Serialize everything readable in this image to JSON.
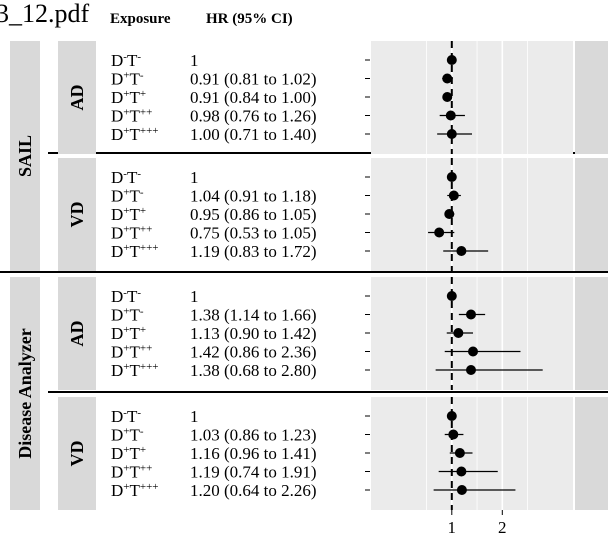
{
  "file_fragment": "3_12.pdf",
  "header": {
    "exposure": "Exposure",
    "hr": "HR (95% CI)"
  },
  "chart_data": {
    "type": "forest",
    "reference_line": 1,
    "x_ticks": [
      1,
      2
    ],
    "xlim": [
      -0.6,
      3.4
    ],
    "groups": [
      {
        "name": "SAIL",
        "panels": [
          {
            "name": "AD",
            "rows": [
              {
                "exposure": [
                  "D",
                  "-",
                  "T",
                  "-"
                ],
                "hr": 1,
                "lo": null,
                "hi": null,
                "label": "1"
              },
              {
                "exposure": [
                  "D",
                  "+",
                  "T",
                  "-"
                ],
                "hr": 0.91,
                "lo": 0.81,
                "hi": 1.02,
                "label": "0.91 (0.81 to 1.02)"
              },
              {
                "exposure": [
                  "D",
                  "+",
                  "T",
                  "+"
                ],
                "hr": 0.91,
                "lo": 0.84,
                "hi": 1.0,
                "label": "0.91 (0.84 to 1.00)"
              },
              {
                "exposure": [
                  "D",
                  "+",
                  "T",
                  "++"
                ],
                "hr": 0.98,
                "lo": 0.76,
                "hi": 1.26,
                "label": "0.98 (0.76 to 1.26)"
              },
              {
                "exposure": [
                  "D",
                  "+",
                  "T",
                  "+++"
                ],
                "hr": 1.0,
                "lo": 0.71,
                "hi": 1.4,
                "label": "1.00 (0.71 to 1.40)"
              }
            ]
          },
          {
            "name": "VD",
            "rows": [
              {
                "exposure": [
                  "D",
                  "-",
                  "T",
                  "-"
                ],
                "hr": 1,
                "lo": null,
                "hi": null,
                "label": "1"
              },
              {
                "exposure": [
                  "D",
                  "+",
                  "T",
                  "-"
                ],
                "hr": 1.04,
                "lo": 0.91,
                "hi": 1.18,
                "label": "1.04 (0.91 to 1.18)"
              },
              {
                "exposure": [
                  "D",
                  "+",
                  "T",
                  "+"
                ],
                "hr": 0.95,
                "lo": 0.86,
                "hi": 1.05,
                "label": "0.95 (0.86 to 1.05)"
              },
              {
                "exposure": [
                  "D",
                  "+",
                  "T",
                  "++"
                ],
                "hr": 0.75,
                "lo": 0.53,
                "hi": 1.05,
                "label": "0.75 (0.53 to 1.05)"
              },
              {
                "exposure": [
                  "D",
                  "+",
                  "T",
                  "+++"
                ],
                "hr": 1.19,
                "lo": 0.83,
                "hi": 1.72,
                "label": "1.19 (0.83 to 1.72)"
              }
            ]
          }
        ]
      },
      {
        "name": "Disease Analyzer",
        "panels": [
          {
            "name": "AD",
            "rows": [
              {
                "exposure": [
                  "D",
                  "-",
                  "T",
                  "-"
                ],
                "hr": 1,
                "lo": null,
                "hi": null,
                "label": "1"
              },
              {
                "exposure": [
                  "D",
                  "+",
                  "T",
                  "-"
                ],
                "hr": 1.38,
                "lo": 1.14,
                "hi": 1.66,
                "label": "1.38 (1.14 to 1.66)"
              },
              {
                "exposure": [
                  "D",
                  "+",
                  "T",
                  "+"
                ],
                "hr": 1.13,
                "lo": 0.9,
                "hi": 1.42,
                "label": "1.13 (0.90 to 1.42)"
              },
              {
                "exposure": [
                  "D",
                  "+",
                  "T",
                  "++"
                ],
                "hr": 1.42,
                "lo": 0.86,
                "hi": 2.36,
                "label": "1.42 (0.86 to 2.36)"
              },
              {
                "exposure": [
                  "D",
                  "+",
                  "T",
                  "+++"
                ],
                "hr": 1.38,
                "lo": 0.68,
                "hi": 2.8,
                "label": "1.38 (0.68 to 2.80)"
              }
            ]
          },
          {
            "name": "VD",
            "rows": [
              {
                "exposure": [
                  "D",
                  "-",
                  "T",
                  "-"
                ],
                "hr": 1,
                "lo": null,
                "hi": null,
                "label": "1"
              },
              {
                "exposure": [
                  "D",
                  "+",
                  "T",
                  "-"
                ],
                "hr": 1.03,
                "lo": 0.86,
                "hi": 1.23,
                "label": "1.03 (0.86 to 1.23)"
              },
              {
                "exposure": [
                  "D",
                  "+",
                  "T",
                  "+"
                ],
                "hr": 1.16,
                "lo": 0.96,
                "hi": 1.41,
                "label": "1.16 (0.96 to 1.41)"
              },
              {
                "exposure": [
                  "D",
                  "+",
                  "T",
                  "++"
                ],
                "hr": 1.19,
                "lo": 0.74,
                "hi": 1.91,
                "label": "1.19 (0.74 to 1.91)"
              },
              {
                "exposure": [
                  "D",
                  "+",
                  "T",
                  "+++"
                ],
                "hr": 1.2,
                "lo": 0.64,
                "hi": 2.26,
                "label": "1.20 (0.64 to 2.26)"
              }
            ]
          }
        ]
      }
    ],
    "colors": {
      "strip": "#d9d9d9",
      "panel_bg": "#ebebeb",
      "grid": "#ffffff",
      "ink": "#000000"
    }
  }
}
